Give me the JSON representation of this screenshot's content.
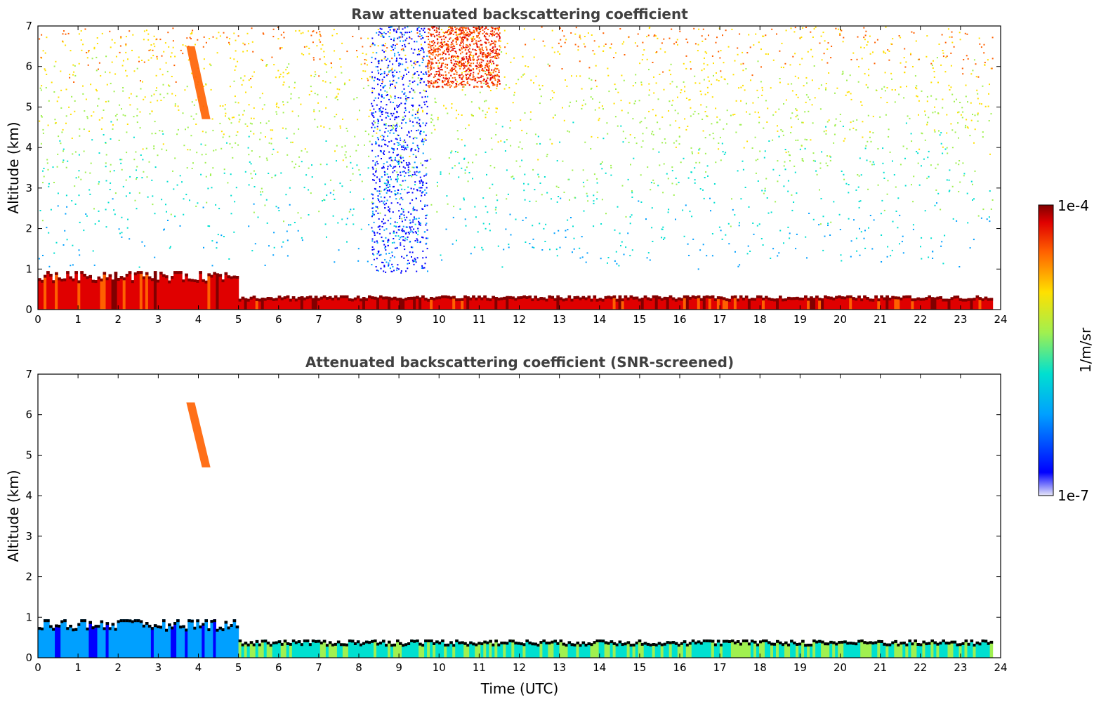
{
  "chart_data": [
    {
      "type": "heatmap",
      "title": "Raw attenuated backscattering coefficient",
      "xlabel": "",
      "ylabel": "Altitude (km)",
      "xlim": [
        0,
        24
      ],
      "ylim": [
        0,
        7
      ],
      "x_ticks": [
        "0",
        "1",
        "2",
        "3",
        "4",
        "5",
        "6",
        "7",
        "8",
        "9",
        "10",
        "11",
        "12",
        "13",
        "14",
        "15",
        "16",
        "17",
        "18",
        "19",
        "20",
        "21",
        "22",
        "23",
        "24"
      ],
      "y_ticks": [
        "0",
        "1",
        "2",
        "3",
        "4",
        "5",
        "6",
        "7"
      ],
      "layers": [
        {
          "feature": "aerosol boundary layer (strong return)",
          "x_start": 0,
          "x_end": 5,
          "y_top": 0.95,
          "value_level": 0.95
        },
        {
          "feature": "surface layer (strong return)",
          "x_start": 5,
          "x_end": 23.8,
          "y_top": 0.35,
          "value_level": 0.95
        },
        {
          "feature": "cirrus streak",
          "x_start": 3.7,
          "x_end": 4.3,
          "y_bottom": 4.7,
          "y_top": 6.5,
          "value_level": 0.75
        },
        {
          "feature": "low-signal noise region",
          "x_start": 8.3,
          "x_end": 9.7,
          "y_bottom": 0.9,
          "y_top": 7,
          "value_level": 0.15
        },
        {
          "feature": "upper noise (high values)",
          "x_start": 9.7,
          "x_end": 11.5,
          "y_bottom": 5.5,
          "y_top": 7,
          "value_level": 0.8
        }
      ]
    },
    {
      "type": "heatmap",
      "title": "Attenuated backscattering coefficient (SNR-screened)",
      "xlabel": "Time (UTC)",
      "ylabel": "Altitude (km)",
      "xlim": [
        0,
        24
      ],
      "ylim": [
        0,
        7
      ],
      "x_ticks": [
        "0",
        "1",
        "2",
        "3",
        "4",
        "5",
        "6",
        "7",
        "8",
        "9",
        "10",
        "11",
        "12",
        "13",
        "14",
        "15",
        "16",
        "17",
        "18",
        "19",
        "20",
        "21",
        "22",
        "23",
        "24"
      ],
      "y_ticks": [
        "0",
        "1",
        "2",
        "3",
        "4",
        "5",
        "6",
        "7"
      ],
      "layers": [
        {
          "feature": "aerosol boundary layer",
          "x_start": 0,
          "x_end": 5,
          "y_top": 0.95,
          "value_level": 0.3
        },
        {
          "feature": "surface layer",
          "x_start": 5,
          "x_end": 23.8,
          "y_top": 0.45,
          "value_level": 0.5
        },
        {
          "feature": "cirrus streak",
          "x_start": 3.7,
          "x_end": 4.3,
          "y_bottom": 4.7,
          "y_top": 6.3,
          "value_level": 0.75
        }
      ]
    }
  ],
  "colorbar": {
    "label": "1/m/sr",
    "max_label": "1e-4",
    "min_label": "1e-7",
    "colormap": [
      "#e6e6f8",
      "#0000ff",
      "#00a0ff",
      "#00e0d0",
      "#a0f050",
      "#ffe000",
      "#ff6000",
      "#e00000",
      "#800000"
    ]
  }
}
